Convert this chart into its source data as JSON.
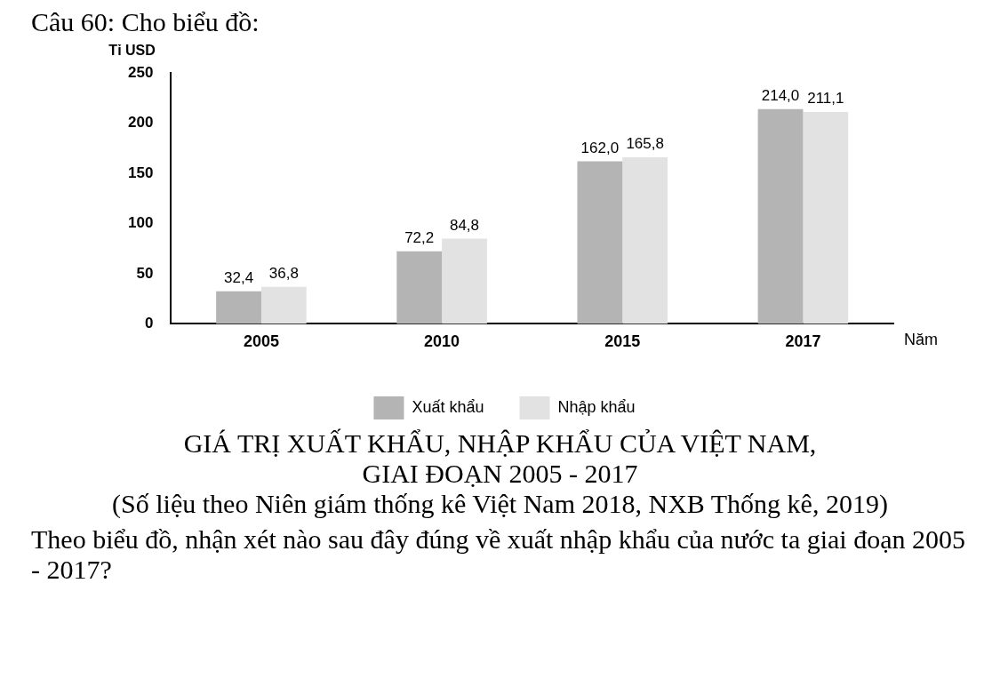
{
  "chart_data": {
    "type": "bar",
    "title": "GIÁ TRỊ XUẤT KHẨU, NHẬP KHẨU CỦA VIỆT NAM,\nGIAI ĐOẠN 2005 - 2017",
    "xlabel": "Năm",
    "ylabel": "Tỉ USD",
    "categories": [
      "2005",
      "2010",
      "2015",
      "2017"
    ],
    "series": [
      {
        "name": "Xuất khẩu",
        "color": "#b4b4b4",
        "values": [
          32.4,
          72.2,
          162.0,
          214.0
        ],
        "value_labels": [
          "32,4",
          "72,2",
          "162,0",
          "214,0"
        ]
      },
      {
        "name": "Nhập khẩu",
        "color": "#e2e2e2",
        "values": [
          36.8,
          84.8,
          165.8,
          211.1
        ],
        "value_labels": [
          "36,8",
          "84,8",
          "165,8",
          "211,1"
        ]
      }
    ],
    "ylim": [
      0,
      250
    ],
    "yticks": [
      0,
      50,
      100,
      150,
      200,
      250
    ],
    "grid": false,
    "legend": "bottom",
    "annotations": [
      "Câu 60: Cho biểu đồ:",
      "(Số liệu theo Niên giám thống kê Việt Nam 2018, NXB Thống kê, 2019)",
      "Theo biểu đồ, nhận xét nào sau đây đúng về xuất nhập khẩu của nước ta giai đoạn 2005 - 2017?"
    ]
  }
}
